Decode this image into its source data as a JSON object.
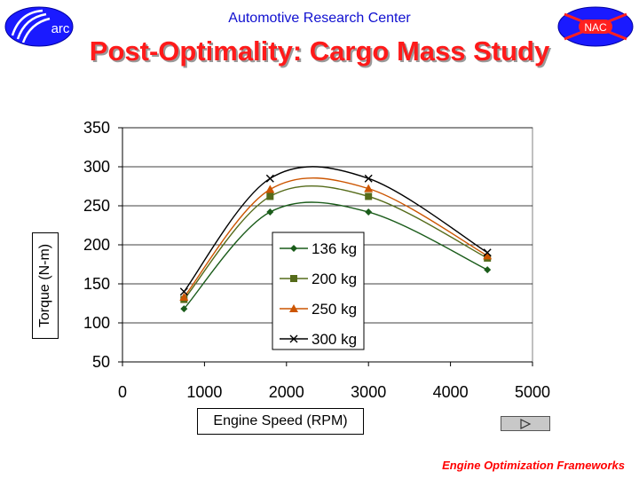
{
  "header": {
    "org": "Automotive Research Center",
    "logo_left": "arc",
    "logo_right": "NAC"
  },
  "title": "Post-Optimality: Cargo Mass Study",
  "footer": "Engine Optimization Frameworks",
  "nav": {
    "icon": "play-icon"
  },
  "colors": {
    "header": "#1010d0",
    "title": "#ff1a1a",
    "footer": "#ff0000"
  },
  "chart_data": {
    "type": "line",
    "xlabel": "Engine Speed (RPM)",
    "ylabel": "Torque (N-m)",
    "xlim": [
      0,
      5000
    ],
    "ylim": [
      50,
      350
    ],
    "x_ticks": [
      0,
      1000,
      2000,
      3000,
      4000,
      5000
    ],
    "y_ticks": [
      50,
      100,
      150,
      200,
      250,
      300,
      350
    ],
    "grid": "horizontal",
    "legend_position": "center",
    "x": [
      750,
      1800,
      3000,
      4450
    ],
    "series": [
      {
        "name": "136 kg",
        "values": [
          118,
          242,
          242,
          168
        ],
        "color": "#1a5c1a",
        "marker": "diamond"
      },
      {
        "name": "200 kg",
        "values": [
          130,
          262,
          262,
          183
        ],
        "color": "#556b1a",
        "marker": "square"
      },
      {
        "name": "250 kg",
        "values": [
          133,
          271,
          272,
          186
        ],
        "color": "#cc5500",
        "marker": "triangle"
      },
      {
        "name": "300 kg",
        "values": [
          140,
          285,
          285,
          190
        ],
        "color": "#000000",
        "marker": "x"
      }
    ]
  }
}
